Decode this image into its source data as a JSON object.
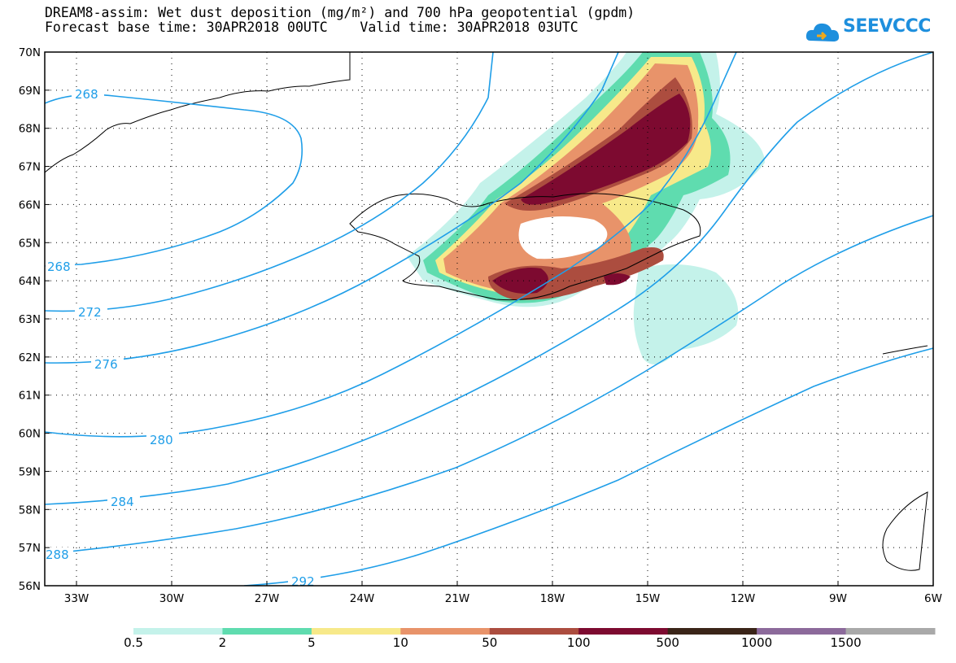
{
  "title": {
    "line1": "DREAM8-assim: Wet dust deposition (mg/m²) and 700 hPa geopotential (gpdm)",
    "line2": "Forecast base time: 30APR2018 00UTC    Valid time: 30APR2018 03UTC"
  },
  "logo": {
    "text": "SEEVCCC",
    "icon": "cloud-icon"
  },
  "map": {
    "lat_labels": [
      "70N",
      "69N",
      "68N",
      "67N",
      "66N",
      "65N",
      "64N",
      "63N",
      "62N",
      "61N",
      "60N",
      "59N",
      "58N",
      "57N",
      "56N"
    ],
    "lon_labels": [
      "33W",
      "30W",
      "27W",
      "24W",
      "21W",
      "18W",
      "15W",
      "12W",
      "9W",
      "6W"
    ],
    "contour_labels": [
      "268",
      "268",
      "272",
      "276",
      "280",
      "284",
      "288",
      "292"
    ],
    "contour_line_color": "#1f9ee8",
    "grid": "dotted"
  },
  "colorbar": {
    "colors": [
      "#c4f2ea",
      "#5fdcaf",
      "#f7e98a",
      "#e8936a",
      "#ac4d3f",
      "#7d0a30",
      "#3a2418",
      "#8c6a9b",
      "#a9a9a9"
    ],
    "labels": [
      "0.5",
      "2",
      "5",
      "10",
      "50",
      "100",
      "500",
      "1000",
      "1500"
    ]
  }
}
